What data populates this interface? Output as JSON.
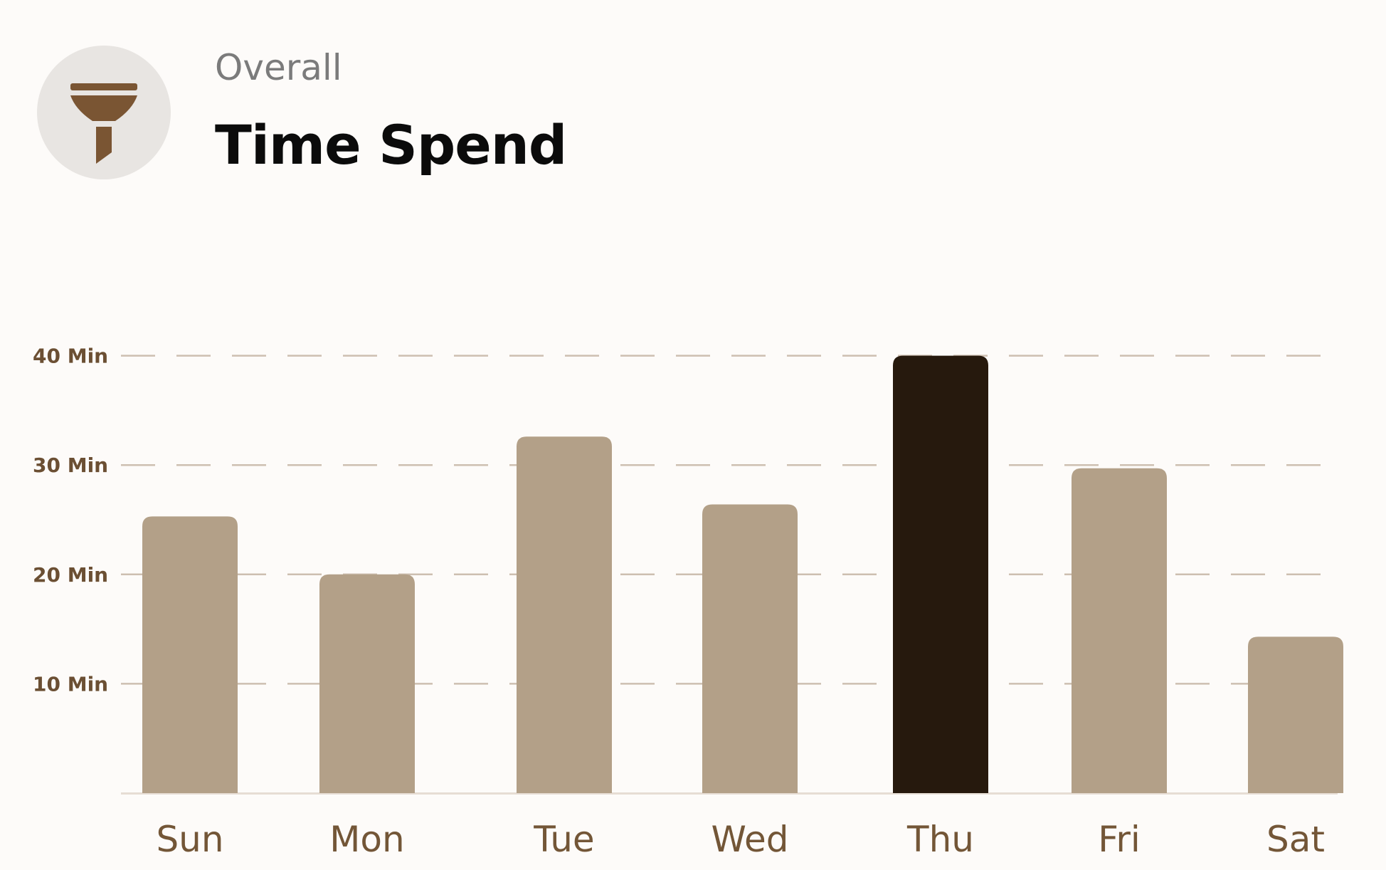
{
  "header": {
    "subtitle": "Overall",
    "title": "Time Spend",
    "icon": "filter-funnel-icon"
  },
  "colors": {
    "bar_default": "#b3a088",
    "bar_highlight": "#26190d",
    "tick_label": "#6b4f33",
    "category_label": "#735637",
    "grid": "#cdbfb1",
    "icon": "#7a5533",
    "icon_bg": "#e8e5e2"
  },
  "chart_data": {
    "type": "bar",
    "categories": [
      "Sun",
      "Mon",
      "Tue",
      "Wed",
      "Thu",
      "Fri",
      "Sat"
    ],
    "values": [
      25.3,
      20,
      32.6,
      26.4,
      40,
      29.7,
      14.3
    ],
    "highlight": "Thu",
    "ylim": [
      0,
      40
    ],
    "yticks": [
      10,
      20,
      30,
      40
    ],
    "ytick_labels": [
      "10 Min",
      "20 Min",
      "30 Min",
      "40 Min"
    ],
    "grid": "dashed horizontal",
    "xlabel": "",
    "ylabel": ""
  }
}
